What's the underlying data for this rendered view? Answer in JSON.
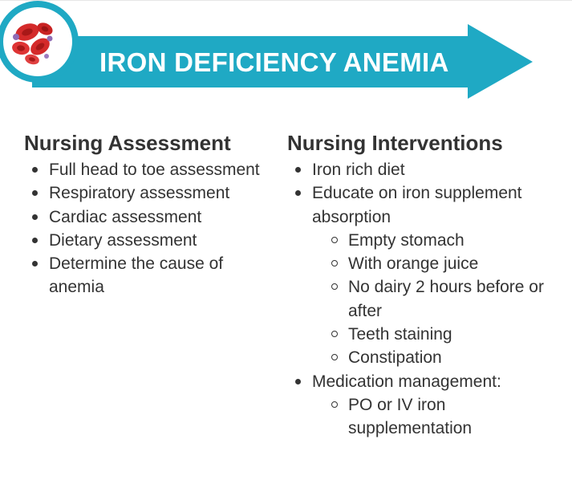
{
  "banner": {
    "title": "IRON DEFICIENCY ANEMIA",
    "colors": {
      "arrow": "#1fa9c4",
      "ring": "#1fa9c4",
      "cells": "#d42a2a"
    },
    "icon": "red-blood-cells-icon"
  },
  "assessment": {
    "heading": "Nursing Assessment",
    "items": [
      "Full head to toe assessment",
      "Respiratory assessment",
      "Cardiac assessment",
      "Dietary assessment",
      "Determine the cause of anemia"
    ]
  },
  "interventions": {
    "heading": "Nursing Interventions",
    "items": [
      {
        "label": "Iron rich diet",
        "subitems": []
      },
      {
        "label": "Educate on iron supplement absorption",
        "subitems": [
          "Empty stomach",
          "With orange juice",
          "No dairy 2 hours before or after",
          "Teeth staining",
          "Constipation"
        ]
      },
      {
        "label": "Medication management:",
        "subitems": [
          "PO or IV iron supplementation"
        ]
      }
    ]
  }
}
